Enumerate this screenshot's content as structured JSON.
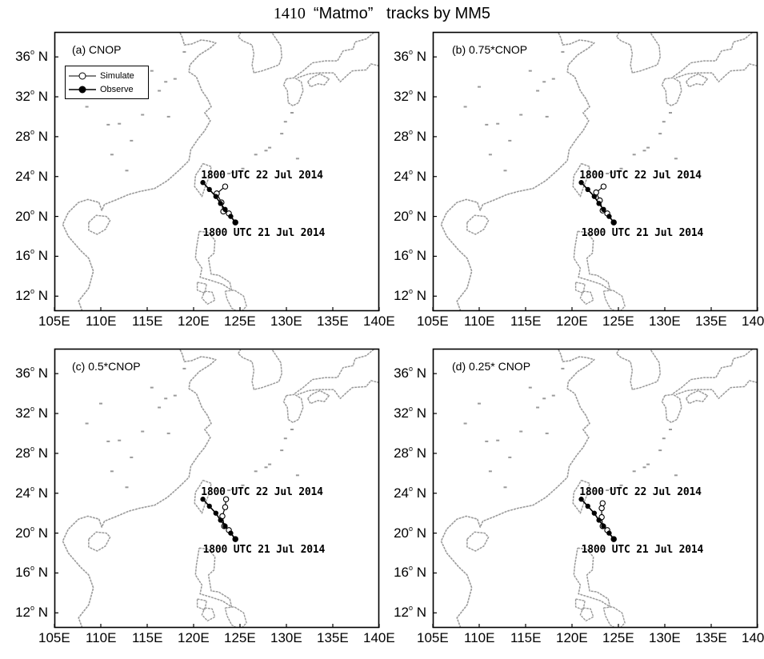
{
  "figure": {
    "title_prefix": "1410  ",
    "title_main": "“Matmo”   tracks by MM5"
  },
  "axes": {
    "lat_labels": [
      "36",
      "32",
      "28",
      "24",
      "20",
      "16",
      "12"
    ],
    "lat_values": [
      36,
      32,
      28,
      24,
      20,
      16,
      12
    ],
    "lat_hemisphere": "N",
    "degree_symbol": "o",
    "lon_labels": [
      "105E",
      "110E",
      "115E",
      "120E",
      "125E",
      "130E",
      "135E",
      "140E"
    ],
    "lon_values": [
      105,
      110,
      115,
      120,
      125,
      130,
      135,
      140
    ],
    "lon_range": [
      105,
      140
    ],
    "lat_range": [
      10.5,
      38.5
    ]
  },
  "legend": {
    "simulated": "Simulate",
    "observed": "Observe"
  },
  "annotations": {
    "start": "1800  UTC  21  Jul  2014",
    "end": "1800  UTC  22  Jul  2014"
  },
  "colors": {
    "land_outline": "#9a9a9a",
    "track": "#000000"
  },
  "chart_data": {
    "type": "map-track",
    "panels": [
      {
        "label": "(a) CNOP",
        "observed": [
          [
            124.5,
            19.4
          ],
          [
            124.0,
            20.0
          ],
          [
            123.4,
            20.7
          ],
          [
            122.9,
            21.3
          ],
          [
            122.4,
            22.0
          ],
          [
            121.7,
            22.7
          ],
          [
            121.0,
            23.4
          ]
        ],
        "simulated": [
          [
            124.5,
            19.4
          ],
          [
            123.8,
            20.3
          ],
          [
            123.2,
            20.5
          ],
          [
            123.0,
            21.4
          ],
          [
            122.5,
            22.3
          ],
          [
            123.4,
            23.0
          ]
        ]
      },
      {
        "label": "(b) 0.75*CNOP",
        "observed": [
          [
            124.5,
            19.4
          ],
          [
            124.0,
            20.0
          ],
          [
            123.4,
            20.7
          ],
          [
            122.9,
            21.3
          ],
          [
            122.4,
            22.0
          ],
          [
            121.7,
            22.7
          ],
          [
            121.0,
            23.4
          ]
        ],
        "simulated": [
          [
            124.5,
            19.4
          ],
          [
            123.8,
            20.3
          ],
          [
            123.3,
            20.6
          ],
          [
            123.0,
            21.6
          ],
          [
            122.6,
            22.4
          ],
          [
            123.4,
            23.0
          ]
        ]
      },
      {
        "label": "(c) 0.5*CNOP",
        "observed": [
          [
            124.5,
            19.4
          ],
          [
            124.0,
            20.0
          ],
          [
            123.4,
            20.7
          ],
          [
            122.9,
            21.3
          ],
          [
            122.4,
            22.0
          ],
          [
            121.7,
            22.7
          ],
          [
            121.0,
            23.4
          ]
        ],
        "simulated": [
          [
            124.5,
            19.4
          ],
          [
            123.8,
            20.3
          ],
          [
            123.3,
            20.7
          ],
          [
            123.1,
            21.7
          ],
          [
            123.4,
            22.6
          ],
          [
            123.5,
            23.4
          ]
        ]
      },
      {
        "label": "(d) 0.25* CNOP",
        "observed": [
          [
            124.5,
            19.4
          ],
          [
            124.0,
            20.0
          ],
          [
            123.4,
            20.7
          ],
          [
            122.9,
            21.3
          ],
          [
            122.4,
            22.0
          ],
          [
            121.7,
            22.7
          ],
          [
            121.0,
            23.4
          ]
        ],
        "simulated": [
          [
            124.5,
            19.4
          ],
          [
            123.8,
            20.3
          ],
          [
            123.3,
            20.7
          ],
          [
            123.2,
            21.6
          ],
          [
            123.2,
            22.5
          ],
          [
            123.3,
            23.0
          ]
        ]
      }
    ]
  }
}
